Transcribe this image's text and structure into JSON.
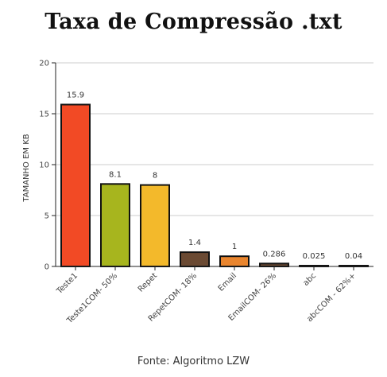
{
  "chart_data": {
    "type": "bar",
    "title": "Taxa de Compressão .txt",
    "ylabel": "TAMANHO EM KB",
    "xlabel": "",
    "ylim": [
      0,
      20
    ],
    "yticks": [
      "0",
      "5",
      "10",
      "15",
      "20"
    ],
    "grid": true,
    "categories": [
      "Teste1",
      "Teste1COM- 50%",
      "Repet",
      "RepetCOM- 18%",
      "Email",
      "EmailCOM- 26%",
      "abc",
      "abcCOM - 62%+"
    ],
    "values": [
      15.9,
      8.1,
      8,
      1.4,
      1,
      0.286,
      0.025,
      0.04
    ],
    "value_labels": [
      "15.9",
      "8.1",
      "8",
      "1.4",
      "1",
      "0.286",
      "0.025",
      "0.04"
    ],
    "colors": [
      "#f24a25",
      "#a7b51e",
      "#f3b92b",
      "#6b4a33",
      "#e9852e",
      "#6b4a33",
      "#6b4a33",
      "#6b4a33"
    ],
    "bar_border": "#111111"
  },
  "footer": "Fonte: Algoritmo LZW"
}
